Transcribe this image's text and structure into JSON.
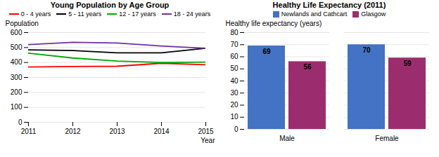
{
  "chart_data": [
    {
      "type": "line",
      "title": "Young Population by Age Group",
      "xlabel": "Year",
      "ylabel": "Population",
      "x": [
        2011,
        2012,
        2013,
        2014,
        2015
      ],
      "series": [
        {
          "name": "0 - 4 years",
          "color": "#ff0000",
          "values": [
            370,
            373,
            375,
            395,
            385
          ]
        },
        {
          "name": "5 - 11 years",
          "color": "#000000",
          "values": [
            485,
            480,
            465,
            465,
            495
          ]
        },
        {
          "name": "12 - 17 years",
          "color": "#00aa00",
          "values": [
            462,
            430,
            410,
            400,
            403
          ]
        },
        {
          "name": "18 - 24 years",
          "color": "#7030a0",
          "values": [
            520,
            535,
            530,
            510,
            495
          ]
        }
      ],
      "xlim": [
        2011,
        2015
      ],
      "xticks": [
        2011,
        2012,
        2013,
        2014,
        2015
      ],
      "ylim": [
        0,
        600
      ],
      "yticks": [
        0,
        100,
        200,
        300,
        400,
        500,
        600
      ],
      "grid": true,
      "legend": "top"
    },
    {
      "type": "bar",
      "title": "Healthy Life Expectancy (2011)",
      "ylabel": "Healthy life expectancy (years)",
      "categories": [
        "Male",
        "Female"
      ],
      "series": [
        {
          "name": "Newlands and Cathcart",
          "color": "#4472c4",
          "values": [
            69,
            70
          ]
        },
        {
          "name": "Glasgow",
          "color": "#9b2d6f",
          "values": [
            56,
            59
          ]
        }
      ],
      "ylim": [
        0,
        80
      ],
      "yticks": [
        0,
        10,
        20,
        30,
        40,
        50,
        60,
        70,
        80
      ],
      "grid": true,
      "data_labels": true,
      "legend": "top"
    }
  ]
}
